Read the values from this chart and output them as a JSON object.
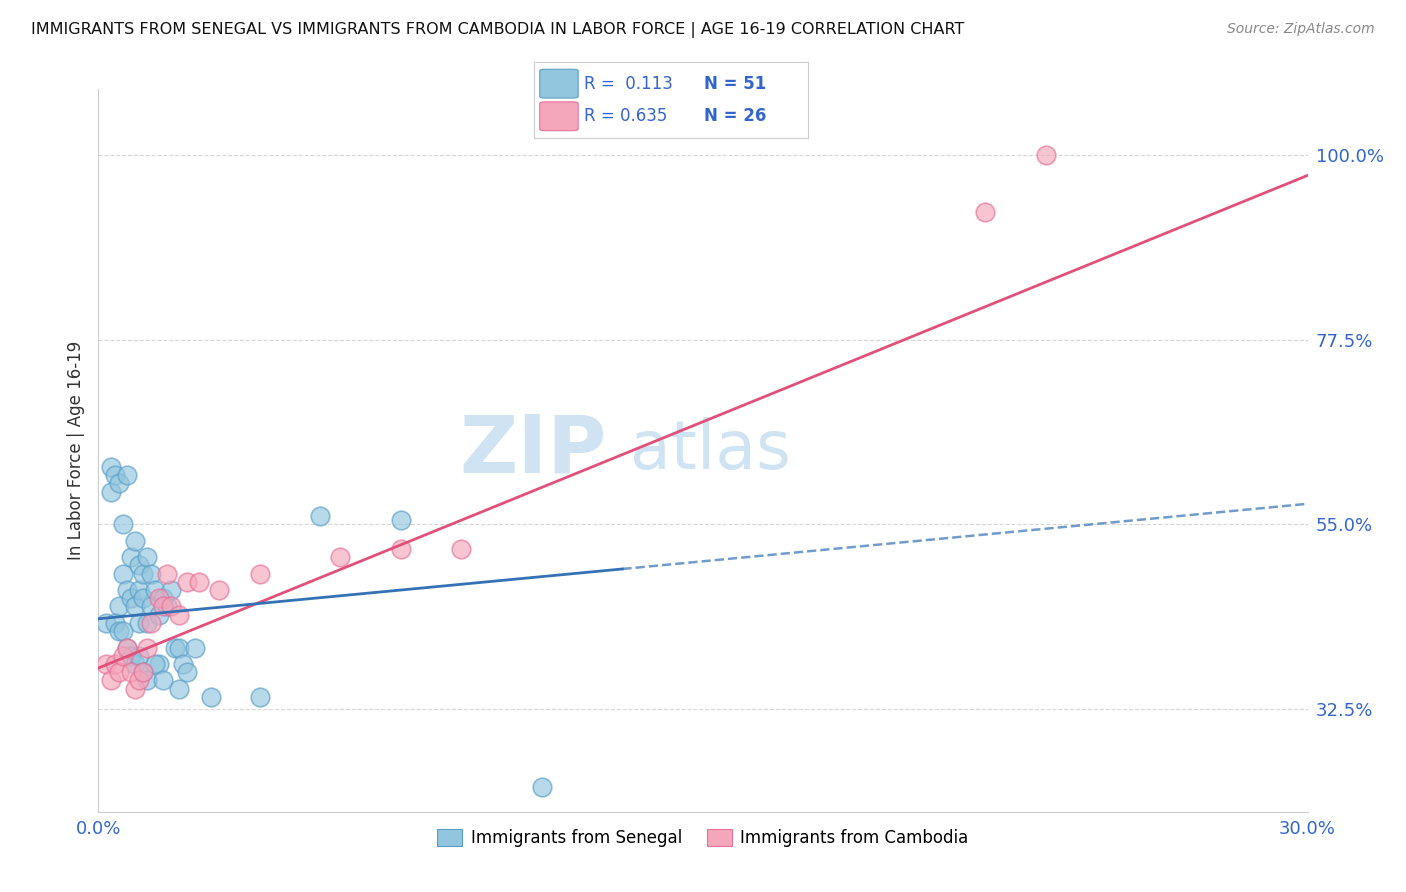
{
  "title": "IMMIGRANTS FROM SENEGAL VS IMMIGRANTS FROM CAMBODIA IN LABOR FORCE | AGE 16-19 CORRELATION CHART",
  "source": "Source: ZipAtlas.com",
  "ylabel": "In Labor Force | Age 16-19",
  "xmin": 0.0,
  "xmax": 0.3,
  "ymin": 0.2,
  "ymax": 1.08,
  "yticks": [
    0.325,
    0.55,
    0.775,
    1.0
  ],
  "ytick_labels": [
    "32.5%",
    "55.0%",
    "77.5%",
    "100.0%"
  ],
  "xtick_labels": [
    "0.0%",
    "",
    "",
    "",
    "",
    "",
    "30.0%"
  ],
  "blue_color": "#92c5de",
  "blue_edge": "#5a9fc8",
  "pink_color": "#f4a6bb",
  "pink_edge": "#e87098",
  "trendline_blue_color": "#3472b5",
  "trendline_pink_color": "#e0507a",
  "watermark_zip": "ZIP",
  "watermark_atlas": "atlas",
  "watermark_color": "#c8dff0",
  "blue_trend_x0": 0.0,
  "blue_trend_y0": 0.435,
  "blue_trend_x1": 0.3,
  "blue_trend_y1": 0.575,
  "pink_trend_x0": 0.0,
  "pink_trend_y0": 0.375,
  "pink_trend_x1": 0.3,
  "pink_trend_y1": 0.975,
  "senegal_x": [
    0.002,
    0.003,
    0.003,
    0.004,
    0.005,
    0.005,
    0.006,
    0.006,
    0.007,
    0.007,
    0.008,
    0.008,
    0.009,
    0.009,
    0.01,
    0.01,
    0.01,
    0.011,
    0.011,
    0.012,
    0.012,
    0.013,
    0.013,
    0.014,
    0.015,
    0.015,
    0.016,
    0.017,
    0.018,
    0.019,
    0.02,
    0.021,
    0.022,
    0.024,
    0.004,
    0.005,
    0.006,
    0.007,
    0.008,
    0.009,
    0.01,
    0.011,
    0.012,
    0.014,
    0.016,
    0.02,
    0.028,
    0.04,
    0.055,
    0.075,
    0.11
  ],
  "senegal_y": [
    0.43,
    0.62,
    0.59,
    0.61,
    0.45,
    0.6,
    0.49,
    0.55,
    0.47,
    0.61,
    0.46,
    0.51,
    0.45,
    0.53,
    0.47,
    0.5,
    0.43,
    0.49,
    0.46,
    0.43,
    0.51,
    0.45,
    0.49,
    0.47,
    0.44,
    0.38,
    0.46,
    0.45,
    0.47,
    0.4,
    0.4,
    0.38,
    0.37,
    0.4,
    0.43,
    0.42,
    0.42,
    0.4,
    0.39,
    0.38,
    0.39,
    0.37,
    0.36,
    0.38,
    0.36,
    0.35,
    0.34,
    0.34,
    0.56,
    0.555,
    0.23
  ],
  "cambodia_x": [
    0.002,
    0.003,
    0.004,
    0.005,
    0.006,
    0.007,
    0.008,
    0.009,
    0.01,
    0.011,
    0.012,
    0.013,
    0.015,
    0.016,
    0.017,
    0.018,
    0.02,
    0.022,
    0.025,
    0.03,
    0.04,
    0.06,
    0.075,
    0.09,
    0.22,
    0.235
  ],
  "cambodia_y": [
    0.38,
    0.36,
    0.38,
    0.37,
    0.39,
    0.4,
    0.37,
    0.35,
    0.36,
    0.37,
    0.4,
    0.43,
    0.46,
    0.45,
    0.49,
    0.45,
    0.44,
    0.48,
    0.48,
    0.47,
    0.49,
    0.51,
    0.52,
    0.52,
    0.93,
    1.0
  ]
}
